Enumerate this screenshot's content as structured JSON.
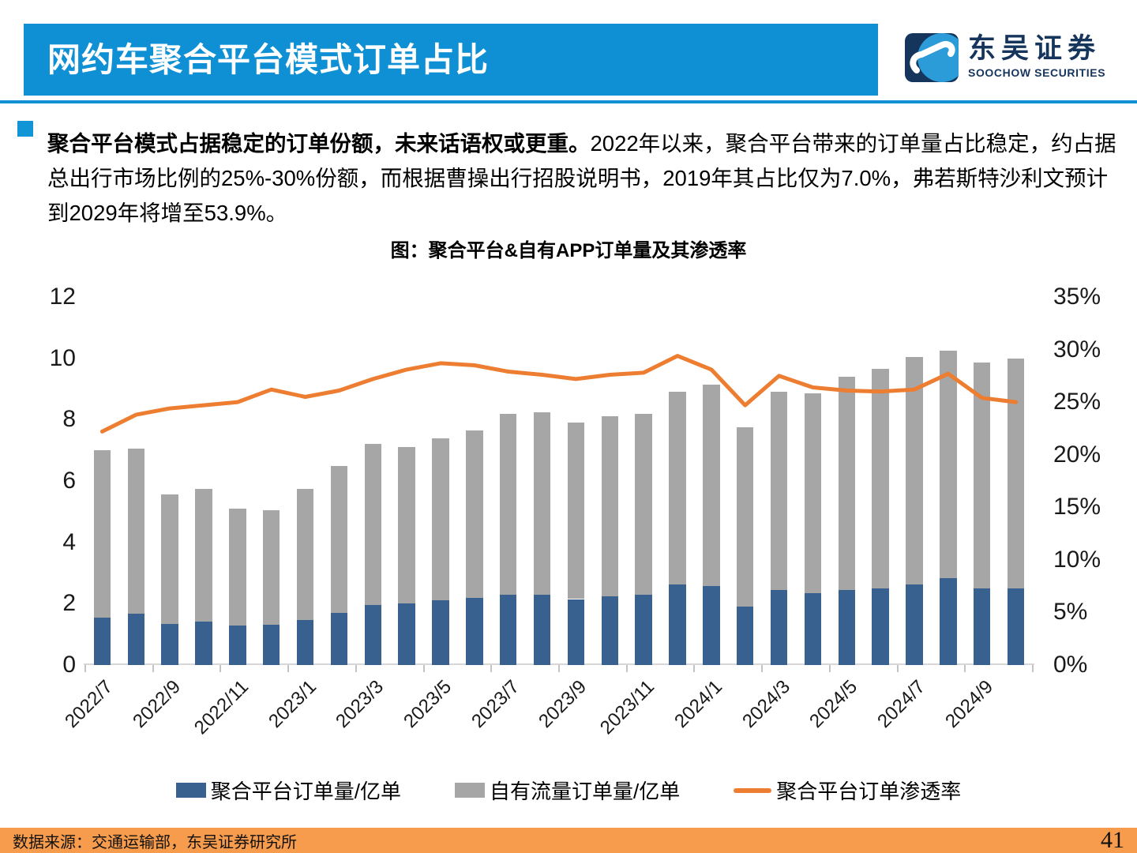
{
  "header": {
    "title": "网约车聚合平台模式订单占比",
    "logo_cn": "东吴证券",
    "logo_en": "SOOCHOW SECURITIES",
    "banner_color": "#0F90D5",
    "logo_navy": "#16355C",
    "logo_blue": "#2B9CD8"
  },
  "paragraph": {
    "bold": "聚合平台模式占据稳定的订单份额，未来话语权或更重。",
    "rest": "2022年以来，聚合平台带来的订单量占比稳定，约占据总出行市场比例的25%-30%份额，而根据曹操出行招股说明书，2019年其占比仅为7.0%，弗若斯特沙利文预计到2029年将增至53.9%。"
  },
  "chart_data": {
    "type": "bar",
    "subtype": "stacked-bars-with-line",
    "title": "图：聚合平台&自有APP订单量及其渗透率",
    "categories": [
      "2022/7",
      "2022/8",
      "2022/9",
      "2022/10",
      "2022/11",
      "2022/12",
      "2023/1",
      "2023/2",
      "2023/3",
      "2023/4",
      "2023/5",
      "2023/6",
      "2023/7",
      "2023/8",
      "2023/9",
      "2023/10",
      "2023/11",
      "2023/12",
      "2024/1",
      "2024/2",
      "2024/3",
      "2024/4",
      "2024/5",
      "2024/6",
      "2024/7",
      "2024/8",
      "2024/9",
      "2024/10"
    ],
    "series": [
      {
        "name": "聚合平台订单量/亿单",
        "type": "bar",
        "stack": 1,
        "color": "#38618F",
        "values": [
          1.55,
          1.68,
          1.35,
          1.42,
          1.28,
          1.32,
          1.47,
          1.7,
          1.96,
          2.0,
          2.12,
          2.18,
          2.29,
          2.28,
          2.15,
          2.24,
          2.28,
          2.62,
          2.57,
          1.91,
          2.45,
          2.34,
          2.45,
          2.51,
          2.63,
          2.84,
          2.5,
          2.5
        ]
      },
      {
        "name": "自有流量订单量/亿单",
        "type": "bar",
        "stack": 2,
        "color": "#A6A6A6",
        "values": [
          5.45,
          5.37,
          4.2,
          4.33,
          3.82,
          3.73,
          4.28,
          4.8,
          5.24,
          5.1,
          5.28,
          5.47,
          5.91,
          5.97,
          5.75,
          5.86,
          5.92,
          6.28,
          6.58,
          5.84,
          6.45,
          6.51,
          6.95,
          7.14,
          7.42,
          7.41,
          7.35,
          7.5
        ]
      },
      {
        "name": "聚合平台订单渗透率",
        "type": "line",
        "axis": "right",
        "color": "#ED7D31",
        "values_pct": [
          22.2,
          23.8,
          24.4,
          24.7,
          25.0,
          26.2,
          25.5,
          26.1,
          27.2,
          28.1,
          28.7,
          28.5,
          27.9,
          27.6,
          27.2,
          27.6,
          27.8,
          29.4,
          28.1,
          24.7,
          27.5,
          26.4,
          26.1,
          26.0,
          26.2,
          27.7,
          25.4,
          25.0
        ]
      }
    ],
    "y_left": {
      "ticks": [
        0,
        2,
        4,
        6,
        8,
        10,
        12
      ],
      "lim": [
        0,
        12
      ]
    },
    "y_right": {
      "ticks": [
        "0%",
        "5%",
        "10%",
        "15%",
        "20%",
        "25%",
        "30%",
        "35%"
      ],
      "lim_pct": [
        0,
        35
      ]
    },
    "x_label_every": 2,
    "grid": false,
    "legend_position": "bottom"
  },
  "legend": {
    "aggregator_label": "聚合平台订单量/亿单",
    "own_app_label": "自有流量订单量/亿单",
    "penetration_label": "聚合平台订单渗透率"
  },
  "footer": {
    "source": "数据来源：交通运输部，东吴证券研究所",
    "page": "41",
    "bar_color": "#F79C4C"
  }
}
